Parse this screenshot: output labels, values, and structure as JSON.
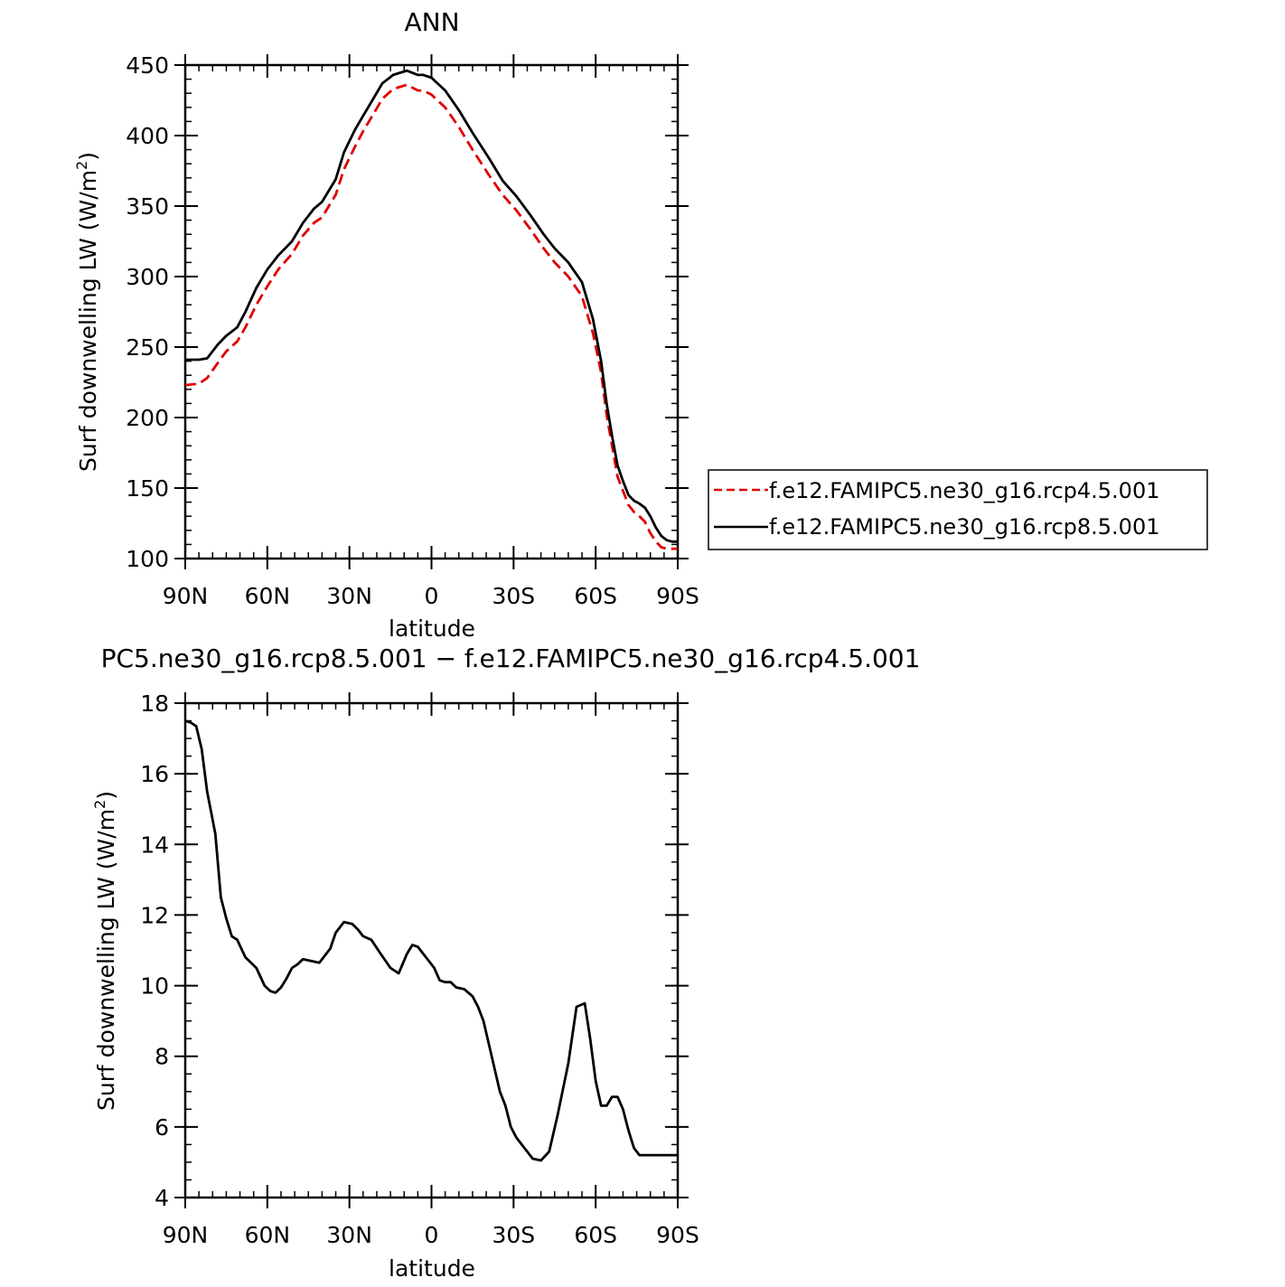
{
  "chart_data": [
    {
      "type": "line",
      "title": "ANN",
      "xlabel": "latitude",
      "ylabel": "Surf downwelling LW (W/m",
      "ylabel_superscript": "2",
      "ylabel_suffix": ")",
      "xlim": [
        90,
        -90
      ],
      "ylim": [
        100,
        450
      ],
      "xticks": [
        {
          "v": 90,
          "label": "90N"
        },
        {
          "v": 60,
          "label": "60N"
        },
        {
          "v": 30,
          "label": "30N"
        },
        {
          "v": 0,
          "label": "0"
        },
        {
          "v": -30,
          "label": "30S"
        },
        {
          "v": -60,
          "label": "60S"
        },
        {
          "v": -90,
          "label": "90S"
        }
      ],
      "yticks": [
        100,
        150,
        200,
        250,
        300,
        350,
        400,
        450
      ],
      "legend_position": "right",
      "series": [
        {
          "name": "f.e12.FAMIPC5.ne30_g16.rcp4.5.001",
          "color": "#e00000",
          "dash": "dashed",
          "x": [
            90,
            85,
            82,
            78,
            75,
            71,
            68,
            64,
            60,
            56,
            51,
            47,
            43,
            40,
            35,
            32,
            28,
            25,
            21,
            18,
            14,
            9,
            5,
            3,
            0,
            -5,
            -10,
            -15,
            -21,
            -26,
            -31,
            -36,
            -41,
            -45,
            -50,
            -55,
            -59,
            -62,
            -64,
            -66,
            -68,
            -70,
            -72,
            -74,
            -76,
            -78,
            -80,
            -82,
            -84,
            -86,
            -88,
            -90
          ],
          "y": [
            223,
            224,
            228,
            239,
            247,
            254,
            264,
            280,
            293,
            305,
            316,
            329,
            338,
            342,
            358,
            376,
            392,
            403,
            416,
            426,
            433,
            436,
            432,
            432,
            429,
            420,
            406,
            390,
            372,
            358,
            347,
            334,
            320,
            310,
            300,
            286,
            260,
            232,
            202,
            180,
            158,
            148,
            138,
            133,
            130,
            126,
            118,
            112,
            108,
            107,
            107,
            107
          ]
        },
        {
          "name": "f.e12.FAMIPC5.ne30_g16.rcp8.5.001",
          "color": "#000000",
          "dash": "solid",
          "x": [
            90,
            85,
            82,
            78,
            75,
            71,
            68,
            64,
            60,
            56,
            51,
            47,
            43,
            40,
            35,
            32,
            28,
            25,
            21,
            18,
            14,
            9,
            5,
            3,
            0,
            -5,
            -10,
            -15,
            -21,
            -26,
            -31,
            -36,
            -41,
            -45,
            -50,
            -55,
            -59,
            -62,
            -64,
            -66,
            -68,
            -70,
            -72,
            -74,
            -76,
            -78,
            -80,
            -82,
            -84,
            -86,
            -88,
            -90
          ],
          "y": [
            241,
            241,
            242,
            252,
            258,
            264,
            275,
            292,
            305,
            315,
            325,
            338,
            348,
            353,
            369,
            388,
            404,
            414,
            427,
            437,
            443,
            446,
            443,
            443,
            441,
            432,
            418,
            402,
            384,
            368,
            357,
            344,
            330,
            320,
            310,
            296,
            270,
            240,
            210,
            187,
            166,
            155,
            145,
            141,
            139,
            136,
            130,
            122,
            116,
            113,
            112,
            112
          ]
        }
      ]
    },
    {
      "type": "line",
      "title": "PC5.ne30_g16.rcp8.5.001 − f.e12.FAMIPC5.ne30_g16.rcp4.5.001",
      "xlabel": "latitude",
      "ylabel": "Surf downwelling LW (W/m",
      "ylabel_superscript": "2",
      "ylabel_suffix": ")",
      "xlim": [
        90,
        -90
      ],
      "ylim": [
        4,
        18
      ],
      "xticks": [
        {
          "v": 90,
          "label": "90N"
        },
        {
          "v": 60,
          "label": "60N"
        },
        {
          "v": 30,
          "label": "30N"
        },
        {
          "v": 0,
          "label": "0"
        },
        {
          "v": -30,
          "label": "30S"
        },
        {
          "v": -60,
          "label": "60S"
        },
        {
          "v": -90,
          "label": "90S"
        }
      ],
      "yticks": [
        4,
        6,
        8,
        10,
        12,
        14,
        16,
        18
      ],
      "series": [
        {
          "color": "#000000",
          "dash": "solid",
          "x": [
            90,
            88,
            86,
            84,
            82,
            79,
            77,
            75,
            73,
            71,
            68,
            64,
            61,
            59,
            57,
            55,
            53,
            51,
            49,
            47,
            44,
            41,
            37,
            35,
            32,
            29,
            27,
            25,
            22,
            19,
            15,
            12,
            9,
            7,
            5,
            3,
            1,
            -1,
            -3,
            -5,
            -7,
            -9,
            -12,
            -15,
            -17,
            -19,
            -22,
            -25,
            -27,
            -29,
            -31,
            -34,
            -37,
            -40,
            -43,
            -46,
            -50,
            -53,
            -56,
            -58,
            -60,
            -62,
            -64,
            -66,
            -68,
            -70,
            -72,
            -74,
            -76,
            -79,
            -81,
            -83,
            -85,
            -87,
            -89,
            -90
          ],
          "y": [
            17.5,
            17.45,
            17.35,
            16.7,
            15.5,
            14.3,
            12.5,
            11.9,
            11.4,
            11.3,
            10.8,
            10.5,
            10.0,
            9.85,
            9.8,
            9.95,
            10.2,
            10.5,
            10.6,
            10.75,
            10.7,
            10.65,
            11.05,
            11.5,
            11.8,
            11.75,
            11.6,
            11.4,
            11.3,
            10.95,
            10.5,
            10.35,
            10.9,
            11.15,
            11.1,
            10.9,
            10.7,
            10.5,
            10.15,
            10.1,
            10.1,
            9.95,
            9.9,
            9.7,
            9.4,
            9.0,
            8.0,
            7.0,
            6.6,
            6.0,
            5.7,
            5.4,
            5.1,
            5.05,
            5.3,
            6.3,
            7.8,
            9.4,
            9.5,
            8.5,
            7.3,
            6.6,
            6.6,
            6.85,
            6.85,
            6.5,
            5.9,
            5.4,
            5.2,
            5.2,
            5.2,
            5.2,
            5.2,
            5.2,
            5.2,
            5.2
          ]
        }
      ]
    }
  ]
}
